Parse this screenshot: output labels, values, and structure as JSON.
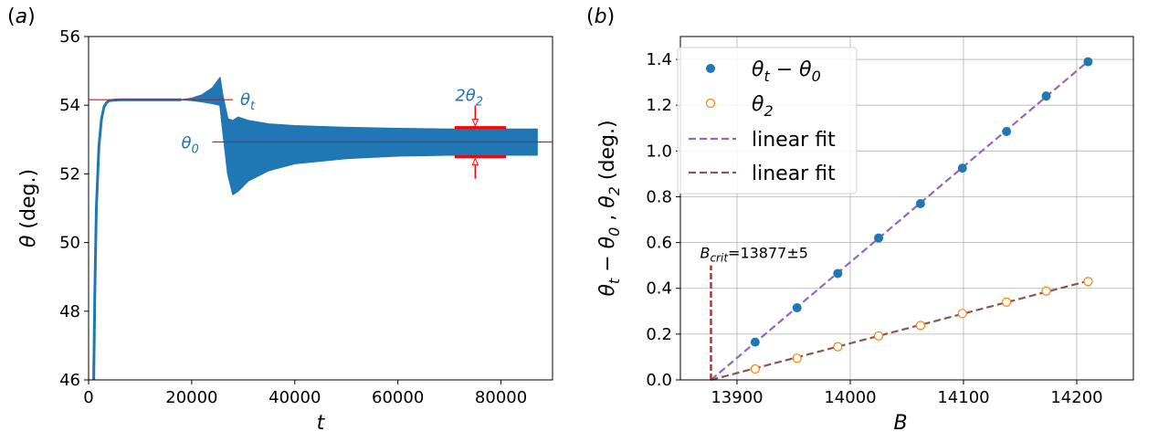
{
  "chart_data": [
    {
      "panel": "(a)",
      "type": "line",
      "xlabel": "t",
      "ylabel": "θ (deg.)",
      "xlim": [
        0,
        90000
      ],
      "ylim": [
        46,
        56
      ],
      "xticks": [
        "0",
        "20000",
        "40000",
        "60000",
        "80000"
      ],
      "yticks": [
        "46",
        "48",
        "50",
        "52",
        "54",
        "56"
      ],
      "grid": false,
      "series": [
        {
          "name": "θ(t)",
          "color": "#1f77b4",
          "rise": {
            "t": [
              1000,
              1200,
              1500,
              2000,
              2500,
              3000,
              3500,
              4000,
              5000,
              6000
            ],
            "theta": [
              46,
              48.5,
              51,
              52.8,
              53.6,
              53.95,
              54.08,
              54.13,
              54.15,
              54.16
            ]
          },
          "plateau": {
            "t": [
              5000,
              18000
            ],
            "theta": 54.16
          },
          "growth_envelope": {
            "t": [
              18000,
              20000,
              22000,
              24000,
              25500
            ],
            "upper": [
              54.16,
              54.2,
              54.3,
              54.5,
              54.8
            ],
            "lower": [
              54.16,
              54.14,
              54.1,
              54.05,
              54.0
            ]
          },
          "transition_envelope": {
            "t": [
              25500,
              26000,
              27000,
              28000,
              29000,
              31000,
              35000,
              40000,
              50000,
              60000,
              70000,
              87000
            ],
            "upper": [
              54.8,
              54.3,
              53.6,
              53.55,
              53.65,
              53.55,
              53.45,
              53.4,
              53.35,
              53.32,
              53.3,
              53.3
            ],
            "lower": [
              54.0,
              53.3,
              52.0,
              51.4,
              51.5,
              51.8,
              52.1,
              52.3,
              52.45,
              52.52,
              52.55,
              52.55
            ]
          }
        }
      ],
      "annotations": [
        {
          "label_base": "θ",
          "label_sub": "t",
          "value": 54.16,
          "line_t": [
            0,
            28000
          ]
        },
        {
          "label_base": "θ",
          "label_sub": "0",
          "value": 52.93,
          "line_t": [
            24000,
            90000
          ]
        },
        {
          "label_base": "2θ",
          "label_sub": "2",
          "upper": 53.35,
          "lower": 52.5,
          "t": 75000,
          "bar_t": [
            71000,
            81000
          ]
        }
      ]
    },
    {
      "panel": "(b)",
      "type": "scatter",
      "xlabel": "B",
      "ylabel": "θt − θ0 , θ2 (deg.)",
      "xlim": [
        13850,
        14250
      ],
      "ylim": [
        0,
        1.5
      ],
      "xticks": [
        "13900",
        "14000",
        "14100",
        "14200"
      ],
      "yticks": [
        "0.0",
        "0.2",
        "0.4",
        "0.6",
        "0.8",
        "1.0",
        "1.2",
        "1.4"
      ],
      "grid": true,
      "legend_position": "top-left",
      "series": [
        {
          "name_base": "θ",
          "name_sub": "t",
          "name_mid": " − θ",
          "name_sub2": "0",
          "color": "#1f77b4",
          "marker": "filled",
          "x": [
            13916,
            13953,
            13989,
            14025,
            14062,
            14099,
            14138,
            14173,
            14210
          ],
          "y": [
            0.165,
            0.315,
            0.465,
            0.62,
            0.77,
            0.925,
            1.085,
            1.24,
            1.39
          ]
        },
        {
          "name_base": "θ",
          "name_sub": "2",
          "name_mid": "",
          "name_sub2": "",
          "color": "#ff7f0e",
          "marker": "open",
          "x": [
            13916,
            13953,
            13989,
            14025,
            14062,
            14099,
            14138,
            14173,
            14210
          ],
          "y": [
            0.048,
            0.095,
            0.145,
            0.192,
            0.238,
            0.29,
            0.34,
            0.388,
            0.43
          ]
        }
      ],
      "fits": [
        {
          "name": "linear fit",
          "color": "#9467bd",
          "x": [
            13877,
            14212
          ],
          "y": [
            0,
            1.4
          ]
        },
        {
          "name": "linear fit",
          "color": "#8c564b",
          "x": [
            13877,
            14212
          ],
          "y": [
            0,
            0.435
          ]
        }
      ],
      "critical": {
        "label_base": "B",
        "label_sub": "crit",
        "label_rest": "=13877±5",
        "x": 13877,
        "y_top": 0.5,
        "color": "#d62728"
      }
    }
  ]
}
